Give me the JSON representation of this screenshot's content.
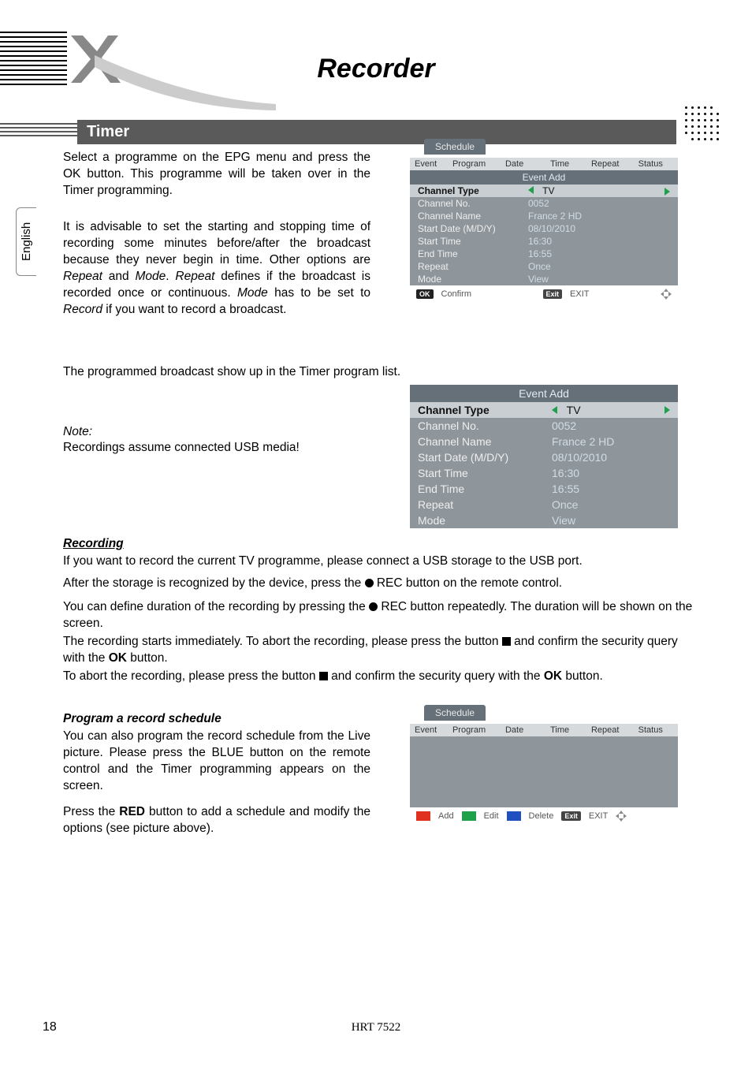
{
  "page": {
    "chapter_title": "Recorder",
    "section_title": "Timer",
    "language_tab": "English",
    "page_number": "18",
    "model": "HRT 7522"
  },
  "text": {
    "p1": "Select a programme on the EPG menu and press the OK button. This programme will be taken over in the Timer programming.",
    "p2_a": "It is advisable to set the starting and stopping time of recording some minutes before/after the broadcast because they never begin in time. Other options are ",
    "p2_b": "Repeat",
    "p2_c": " and ",
    "p2_d": "Mode",
    "p2_e": ". ",
    "p2_f": "Repeat",
    "p2_g": " defines if the broadcast is recorded once or continuous. ",
    "p2_h": "Mode",
    "p2_i": " has to be set to ",
    "p2_j": "Record",
    "p2_k": " if you want to record a broadcast.",
    "p3": "The programmed broadcast show up in the Timer program list.",
    "note_label": "Note:",
    "note_body": "Recordings assume connected USB media!",
    "recording_heading": "Recording",
    "rec_p1": "If you want to record the current TV programme, please connect a USB storage to the USB port.",
    "rec_p2_a": "After the storage is recognized by the device, press the ",
    "rec_p2_b": "REC button on the remote control.",
    "rec_p3_a": "You can define duration of the recording by pressing the ",
    "rec_p3_b": "REC button repeatedly. The duration will be shown on the screen.",
    "rec_p4_a": "The recording starts immediately. To abort the recording, please press the button ",
    "rec_p4_b": " and confirm the security query with the ",
    "rec_p4_c": "OK",
    "rec_p4_d": " button.",
    "rec_p5_a": "To abort the recording, please press the button ",
    "rec_p5_b": " and confirm the security query with the ",
    "rec_p5_c": "OK",
    "rec_p5_d": " button.",
    "sched_heading": "Program a record schedule",
    "sched_p1": "You can also program the record schedule from the Live picture. Please press the BLUE button on the remote control and the Timer programming appears on the screen.",
    "sched_p2_a": "Press the ",
    "sched_p2_b": "RED",
    "sched_p2_c": " button to add a schedule and modify the options (see picture above)."
  },
  "osd1": {
    "tab": "Schedule",
    "headers": [
      "Event",
      "Program",
      "Date",
      "Time",
      "Repeat",
      "Status"
    ],
    "subtitle": "Event Add",
    "rows": [
      {
        "label": "Channel Type",
        "value": "TV",
        "selected": true,
        "arrows": true
      },
      {
        "label": "Channel No.",
        "value": "0052"
      },
      {
        "label": "Channel Name",
        "value": "France 2 HD"
      },
      {
        "label": "Start Date (M/D/Y)",
        "value": "08/10/2010"
      },
      {
        "label": "Start Time",
        "value": "16:30"
      },
      {
        "label": "End Time",
        "value": "16:55"
      },
      {
        "label": "Repeat",
        "value": "Once"
      },
      {
        "label": "Mode",
        "value": "View"
      }
    ],
    "bottom": {
      "ok": "OK",
      "confirm": "Confirm",
      "exit_key": "Exit",
      "exit_label": "EXIT"
    }
  },
  "osd2": {
    "title": "Event Add",
    "rows": [
      {
        "label": "Channel Type",
        "value": "TV",
        "selected": true,
        "arrows": true
      },
      {
        "label": "Channel No.",
        "value": "0052"
      },
      {
        "label": "Channel Name",
        "value": "France 2 HD"
      },
      {
        "label": "Start Date (M/D/Y)",
        "value": "08/10/2010"
      },
      {
        "label": "Start Time",
        "value": "16:30"
      },
      {
        "label": "End Time",
        "value": "16:55"
      },
      {
        "label": "Repeat",
        "value": "Once"
      },
      {
        "label": "Mode",
        "value": "View"
      }
    ]
  },
  "osd3": {
    "tab": "Schedule",
    "headers": [
      "Event",
      "Program",
      "Date",
      "Time",
      "Repeat",
      "Status"
    ],
    "bottom": {
      "red": "#e03020",
      "add": "Add",
      "green": "#1fa04a",
      "edit": "Edit",
      "blue": "#2050c0",
      "delete": "Delete",
      "exit_key": "Exit",
      "exit_label": "EXIT"
    }
  },
  "colors": {
    "section_bar_bg": "#5a5a5a",
    "osd_bg": "#8f969b",
    "osd_header_bg": "#d6dadd",
    "osd_tab_bg": "#667078",
    "osd_value_color": "#d0dce6",
    "triangle_green": "#1fa04a"
  }
}
